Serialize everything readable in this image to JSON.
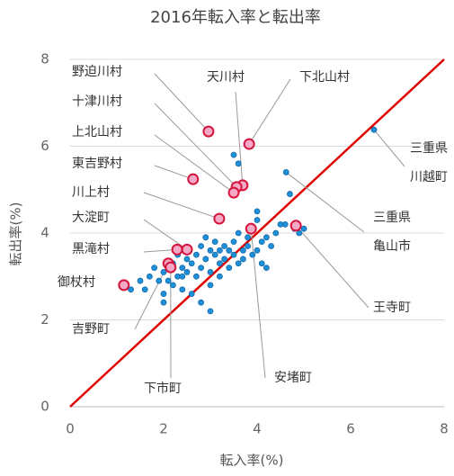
{
  "chart_data": {
    "type": "scatter",
    "title": "2016年転入率と転出率",
    "xlabel": "転入率(%)",
    "ylabel": "転出率(%)",
    "xlim": [
      0,
      8
    ],
    "ylim": [
      0,
      8
    ],
    "xticks": [
      0,
      2,
      4,
      6,
      8
    ],
    "yticks": [
      0,
      2,
      4,
      6,
      8
    ],
    "grid": true,
    "diagonal": true,
    "diagonal_color": "#e00000",
    "series": [
      {
        "color": "#1e90d8",
        "edge": "#1567a8",
        "x": [
          1.3,
          1.6,
          1.7,
          1.8,
          1.9,
          2.0,
          2.0,
          2.1,
          2.2,
          2.2,
          2.3,
          2.3,
          2.4,
          2.4,
          2.5,
          2.5,
          2.6,
          2.6,
          2.7,
          2.7,
          2.8,
          2.8,
          2.9,
          2.9,
          3.0,
          3.0,
          3.0,
          3.1,
          3.1,
          3.2,
          3.2,
          3.3,
          3.3,
          3.4,
          3.4,
          3.5,
          3.5,
          3.6,
          3.6,
          3.7,
          3.7,
          3.8,
          3.8,
          3.9,
          4.0,
          4.0,
          4.0,
          4.1,
          4.1,
          4.2,
          4.3,
          4.4,
          4.5,
          4.6,
          4.7,
          4.8,
          4.9,
          5.0,
          3.5,
          3.6,
          2.0,
          1.5,
          3.0,
          2.4,
          3.2,
          2.8,
          4.2,
          6.5,
          4.62
        ],
        "y": [
          2.7,
          2.7,
          3.0,
          3.2,
          2.9,
          3.1,
          2.6,
          2.9,
          3.3,
          2.8,
          3.0,
          3.5,
          3.2,
          2.7,
          3.4,
          3.1,
          2.6,
          3.3,
          3.5,
          3.0,
          3.7,
          3.2,
          3.4,
          3.9,
          3.6,
          3.1,
          2.8,
          3.5,
          3.8,
          3.3,
          3.6,
          3.7,
          3.4,
          3.2,
          3.6,
          3.5,
          3.8,
          3.3,
          4.0,
          3.6,
          3.4,
          3.7,
          3.9,
          3.5,
          3.6,
          4.3,
          4.5,
          3.3,
          3.8,
          3.9,
          3.7,
          4.0,
          4.2,
          4.2,
          4.9,
          4.1,
          4.0,
          4.1,
          5.8,
          5.6,
          2.4,
          2.9,
          2.2,
          3.0,
          3.0,
          2.4,
          3.2,
          6.38,
          5.4
        ],
        "labels": [
          null,
          null,
          null,
          null,
          null,
          null,
          null,
          null,
          null,
          null,
          null,
          null,
          null,
          null,
          null,
          null,
          null,
          null,
          null,
          null,
          null,
          null,
          null,
          null,
          null,
          null,
          null,
          null,
          null,
          null,
          null,
          null,
          null,
          null,
          null,
          null,
          null,
          null,
          null,
          null,
          null,
          null,
          null,
          null,
          null,
          null,
          null,
          null,
          null,
          null,
          null,
          null,
          null,
          null,
          null,
          null,
          null,
          null,
          null,
          null,
          null,
          null,
          null,
          null,
          null,
          null,
          null,
          [
            "三重県",
            "川越町"
          ],
          [
            "三重県",
            "亀山市"
          ]
        ]
      },
      {
        "color": "#f5a9c6",
        "edge": "#d4143c",
        "x": [
          2.96,
          3.69,
          3.83,
          3.56,
          3.5,
          2.63,
          3.19,
          2.5,
          2.29,
          1.15,
          2.1,
          2.15,
          3.87,
          4.83
        ],
        "y": [
          6.34,
          5.1,
          6.05,
          5.06,
          4.93,
          5.24,
          4.33,
          3.62,
          3.62,
          2.8,
          3.3,
          3.21,
          4.1,
          4.17
        ],
        "labels": [
          "野迫川村",
          "天川村",
          "下北山村",
          "十津川村",
          "上北山村",
          "東吉野村",
          "川上村",
          "大淀町",
          "黒滝村",
          "御杖村",
          "吉野町",
          "下市町",
          "安堵町",
          "王寺町"
        ]
      }
    ]
  }
}
